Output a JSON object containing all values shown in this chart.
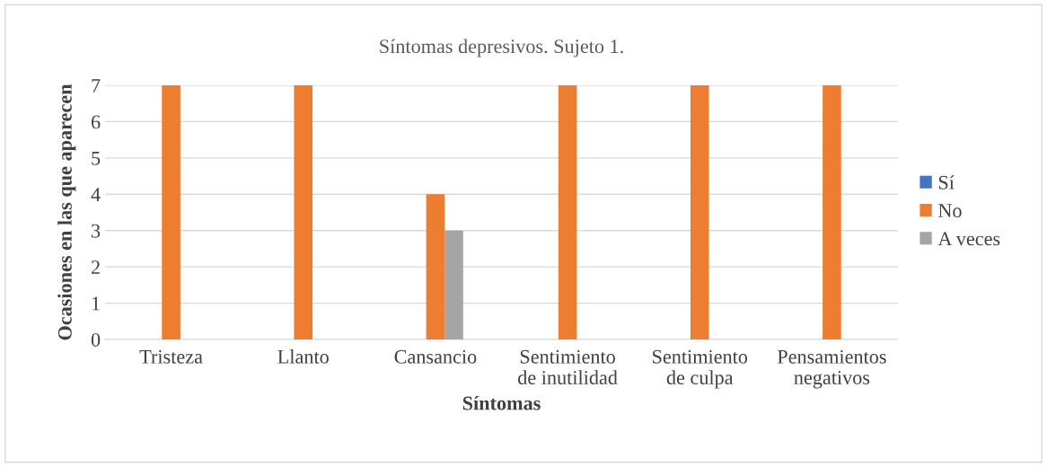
{
  "chart_data": {
    "type": "bar",
    "title": "Síntomas depresivos. Sujeto 1.",
    "xlabel": "Síntomas",
    "ylabel": "Ocasiones en las que aparecen",
    "categories": [
      "Tristeza",
      "Llanto",
      "Cansancio",
      "Sentimiento\nde inutilidad",
      "Sentimiento\nde culpa",
      "Pensamientos\nnegativos"
    ],
    "series": [
      {
        "name": "Sí",
        "color": "#4472c4",
        "values": [
          0,
          0,
          0,
          0,
          0,
          0
        ]
      },
      {
        "name": "No",
        "color": "#ed7d31",
        "values": [
          7,
          7,
          4,
          7,
          7,
          7
        ]
      },
      {
        "name": "A veces",
        "color": "#a5a5a5",
        "values": [
          0,
          0,
          3,
          0,
          0,
          0
        ]
      }
    ],
    "ylim": [
      0,
      7
    ],
    "yticks": [
      0,
      1,
      2,
      3,
      4,
      5,
      6,
      7
    ],
    "grid": "y",
    "legend": "right"
  }
}
